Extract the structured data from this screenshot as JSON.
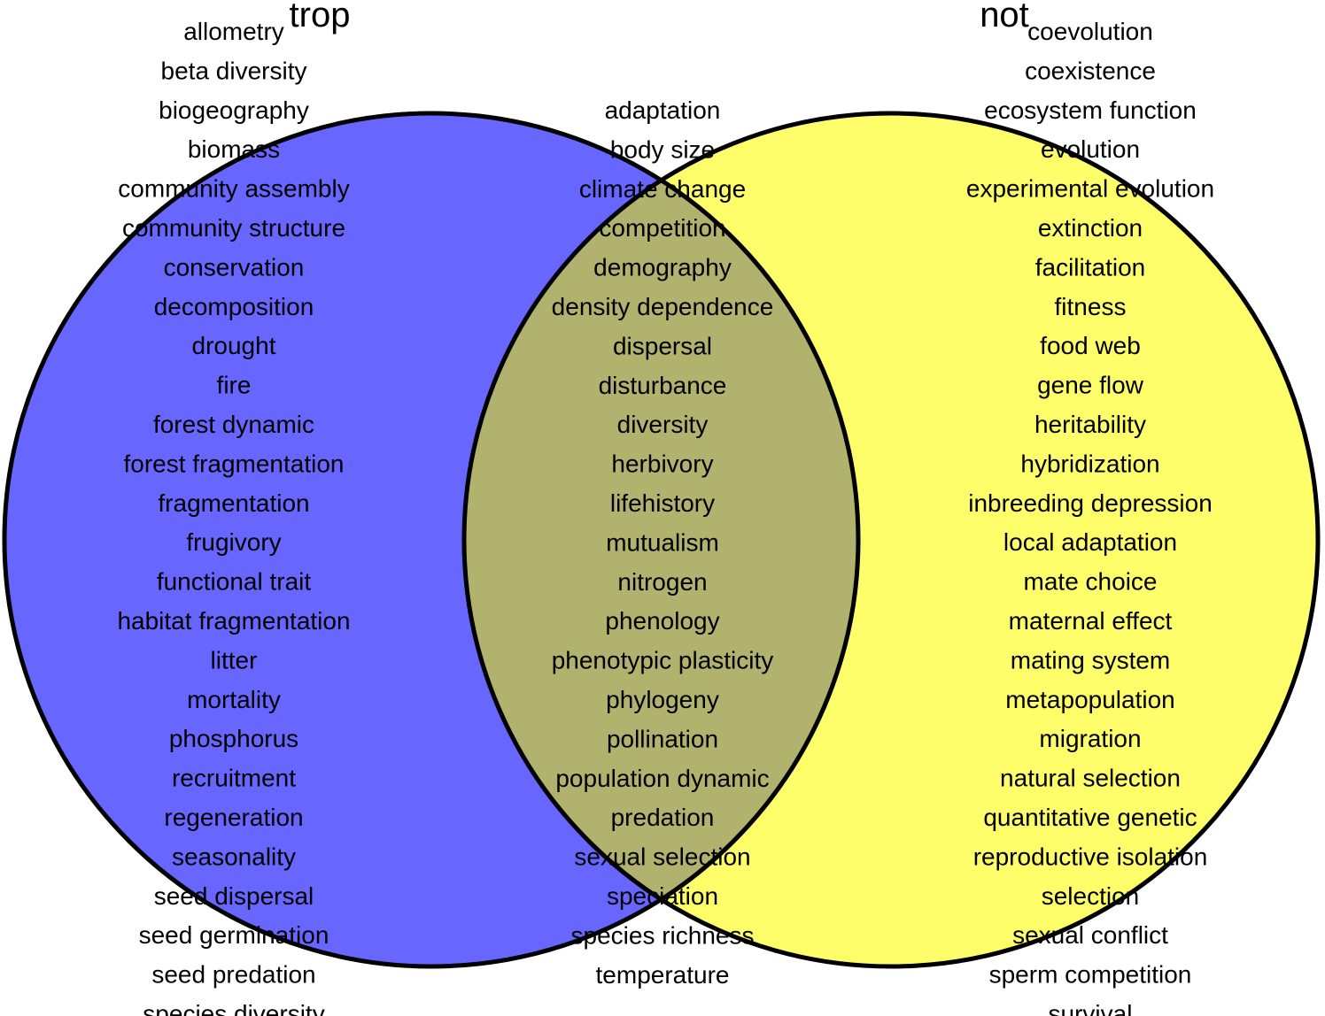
{
  "sets": {
    "left": {
      "title": "trop",
      "fill_color": "#6766FF"
    },
    "right": {
      "title": "not",
      "fill_color": "#FEFD6A"
    },
    "overlap_color": "#B1B26E",
    "outline_color": "#000000"
  },
  "terms": {
    "left": [
      "allometry",
      "beta diversity",
      "biogeography",
      "biomass",
      "community assembly",
      "community structure",
      "conservation",
      "decomposition",
      "drought",
      "fire",
      "forest dynamic",
      "forest fragmentation",
      "fragmentation",
      "frugivory",
      "functional trait",
      "habitat fragmentation",
      "litter",
      "mortality",
      "phosphorus",
      "recruitment",
      "regeneration",
      "seasonality",
      "seed dispersal",
      "seed germination",
      "seed predation",
      "species diversity"
    ],
    "shared": [
      "adaptation",
      "body size",
      "climate change",
      "competition",
      "demography",
      "density dependence",
      "dispersal",
      "disturbance",
      "diversity",
      "herbivory",
      "lifehistory",
      "mutualism",
      "nitrogen",
      "phenology",
      "phenotypic plasticity",
      "phylogeny",
      "pollination",
      "population dynamic",
      "predation",
      "sexual selection",
      "speciation",
      "species richness",
      "temperature"
    ],
    "right": [
      "coevolution",
      "coexistence",
      "ecosystem function",
      "evolution",
      "experimental evolution",
      "extinction",
      "facilitation",
      "fitness",
      "food web",
      "gene flow",
      "heritability",
      "hybridization",
      "inbreeding depression",
      "local adaptation",
      "mate choice",
      "maternal effect",
      "mating system",
      "metapopulation",
      "migration",
      "natural selection",
      "quantitative genetic",
      "reproductive isolation",
      "selection",
      "sexual conflict",
      "sperm competition",
      "survival"
    ]
  }
}
